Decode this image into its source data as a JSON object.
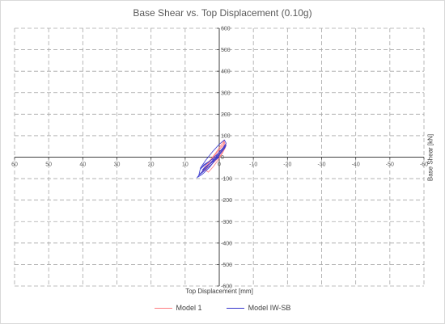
{
  "chart_data": {
    "type": "line",
    "title": "Base Shear vs. Top Displacement (0.10g)",
    "xlabel": "Top Displacement [mm]",
    "ylabel": "Base Shear [kN]",
    "xlim": [
      60,
      -60
    ],
    "ylim": [
      -600,
      600
    ],
    "x_ticks": [
      60,
      50,
      40,
      30,
      20,
      10,
      0,
      -10,
      -20,
      -30,
      -40,
      -50,
      -60
    ],
    "y_ticks": [
      600,
      500,
      400,
      300,
      200,
      100,
      0,
      -100,
      -200,
      -300,
      -400,
      -500,
      -600
    ],
    "grid": true,
    "legend_position": "bottom",
    "series": [
      {
        "name": "Model 1",
        "color": "#ff7c80",
        "x": [
          0,
          2,
          4,
          5,
          4.5,
          3,
          1,
          -0.5,
          -1.5,
          -1.2,
          0,
          1.5,
          3,
          3.8,
          3.2,
          2,
          0.5,
          -0.8,
          -1.6,
          -1.4,
          -0.5,
          0.8,
          2.2,
          3.4,
          4,
          3.2,
          1.8,
          0.4,
          -0.8,
          -1.8,
          -2,
          -1.2,
          0
        ],
        "y": [
          0,
          -30,
          -55,
          -70,
          -50,
          -20,
          20,
          55,
          80,
          60,
          35,
          5,
          -25,
          -45,
          -30,
          -5,
          25,
          50,
          70,
          55,
          30,
          5,
          -20,
          -40,
          -60,
          -70,
          -45,
          -15,
          15,
          45,
          65,
          30,
          0
        ]
      },
      {
        "name": "Model IW-SB",
        "color": "#3333cc",
        "x": [
          0,
          3,
          5.5,
          6.5,
          5,
          3,
          1,
          -1,
          -2,
          -1.5,
          0,
          2,
          4,
          5.5,
          6,
          4.5,
          2,
          0.5,
          -1,
          -2,
          -1.5,
          0,
          2,
          4,
          5,
          4,
          2.5,
          1,
          0,
          -1.2,
          -1.8,
          -1,
          0.5,
          2.5,
          4.5,
          5.5,
          4.5,
          2,
          0
        ],
        "y": [
          0,
          -35,
          -75,
          -95,
          -80,
          -50,
          -10,
          30,
          65,
          80,
          60,
          25,
          -15,
          -50,
          -85,
          -65,
          -30,
          5,
          35,
          55,
          40,
          10,
          -20,
          -45,
          -60,
          -50,
          -25,
          0,
          25,
          45,
          60,
          40,
          15,
          -15,
          -40,
          -55,
          -35,
          -10,
          0
        ]
      }
    ]
  }
}
